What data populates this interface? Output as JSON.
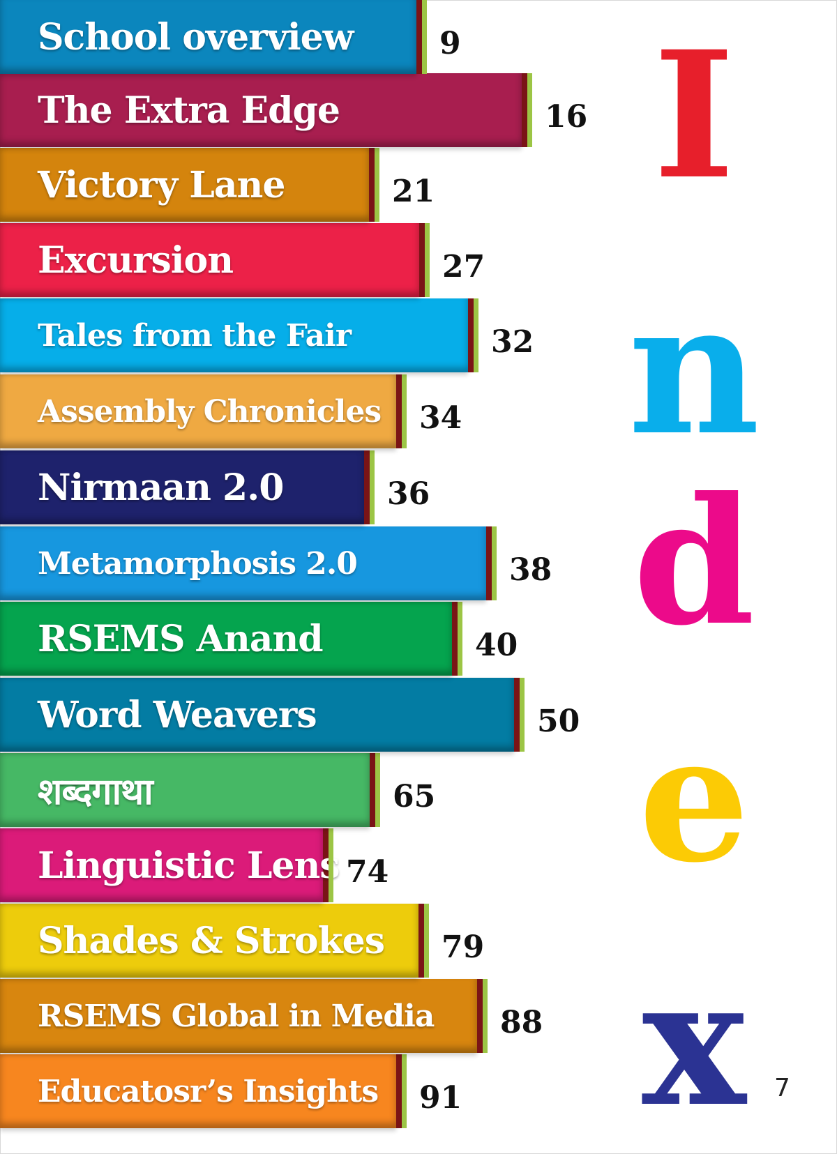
{
  "entries": [
    {
      "title": "School overview",
      "page": "9",
      "color": "#0b86bd",
      "barEnd": 612
    },
    {
      "title": "The Extra Edge",
      "page": "16",
      "color": "#a81e4f",
      "barEnd": 763
    },
    {
      "title": "Victory Lane",
      "page": "21",
      "color": "#d4840d",
      "barEnd": 544
    },
    {
      "title": "Excursion",
      "page": "27",
      "color": "#ec2148",
      "barEnd": 616
    },
    {
      "title": "Tales from the Fair",
      "page": "32",
      "color": "#06aee9",
      "barEnd": 686
    },
    {
      "title": "Assembly Chronicles",
      "page": "34",
      "color": "#efa942",
      "barEnd": 583
    },
    {
      "title": "Nirmaan 2.0",
      "page": "36",
      "color": "#1e226c",
      "barEnd": 537
    },
    {
      "title": "Metamorphosis 2.0",
      "page": "38",
      "color": "#1797df",
      "barEnd": 712
    },
    {
      "title": "RSEMS Anand",
      "page": "40",
      "color": "#05a44e",
      "barEnd": 663
    },
    {
      "title": "Word Weavers",
      "page": "50",
      "color": "#037ca3",
      "barEnd": 752
    },
    {
      "title": "शब्दगाथा",
      "page": "65",
      "color": "#46b865",
      "barEnd": 545
    },
    {
      "title": "Linguistic Lens",
      "page": "74",
      "color": "#db1b79",
      "barEnd": 478
    },
    {
      "title": "Shades & Strokes",
      "page": "79",
      "color": "#edcc0c",
      "barEnd": 615
    },
    {
      "title": "RSEMS Global in Media",
      "page": "88",
      "color": "#d8860f",
      "barEnd": 699
    },
    {
      "title": "Educatosr’s  Insights",
      "page": "91",
      "color": "#f7861f",
      "barEnd": 583
    }
  ],
  "heading_letters": [
    {
      "char": "I",
      "color": "#e71f2b"
    },
    {
      "char": "n",
      "color": "#09aeeb"
    },
    {
      "char": "d",
      "color": "#ec0a8a"
    },
    {
      "char": "e",
      "color": "#fccb05"
    },
    {
      "char": "x",
      "color": "#2b3393"
    }
  ],
  "page_number": "7"
}
